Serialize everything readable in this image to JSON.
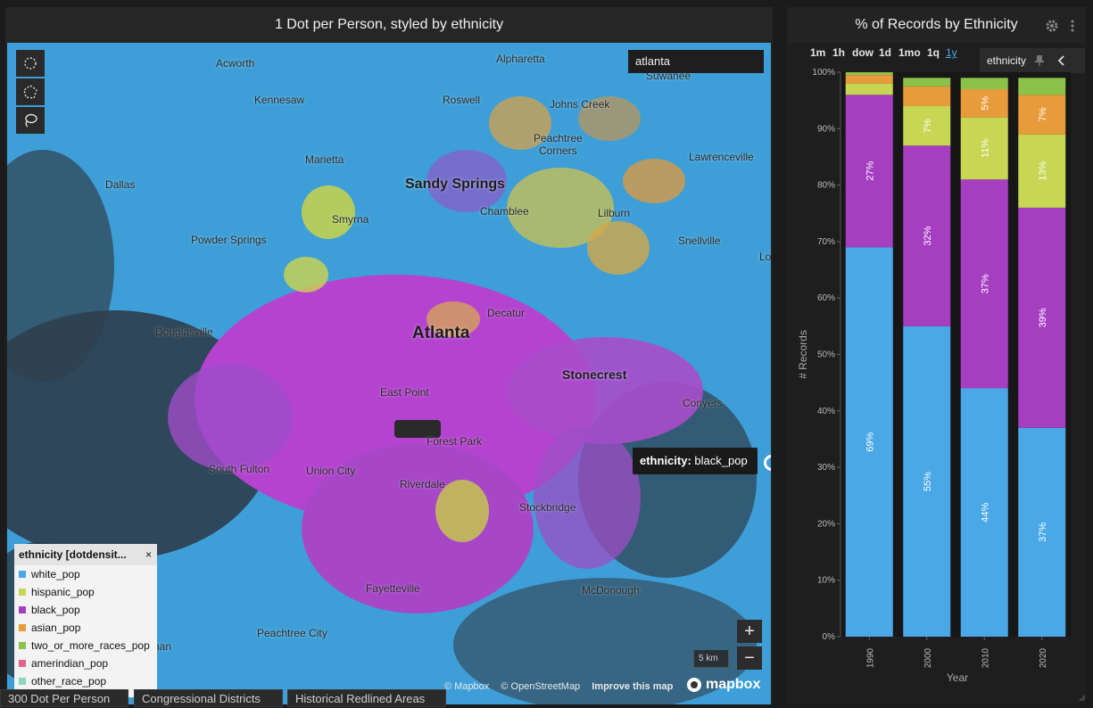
{
  "map_panel": {
    "title": "1 Dot per Person, styled by ethnicity",
    "search_value": "atlanta",
    "tooltip": {
      "key": "ethnicity:",
      "value": "black_pop"
    },
    "legend": {
      "title": "ethnicity [dotdensit...",
      "close": "×",
      "items": [
        {
          "label": "white_pop",
          "color": "#4aa8e6"
        },
        {
          "label": "hispanic_pop",
          "color": "#c7d653"
        },
        {
          "label": "black_pop",
          "color": "#a63ec2"
        },
        {
          "label": "asian_pop",
          "color": "#e89b3a"
        },
        {
          "label": "two_or_more_races_pop",
          "color": "#8cc24a"
        },
        {
          "label": "amerindian_pop",
          "color": "#e1648c"
        },
        {
          "label": "other_race_pop",
          "color": "#8ad6c0"
        }
      ]
    },
    "cities": {
      "acworth": "Acworth",
      "alpharetta": "Alpharetta",
      "suwanee": "Suwanee",
      "kennesaw": "Kennesaw",
      "roswell": "Roswell",
      "johns_creek": "Johns Creek",
      "peachtree_corners": "Peachtree\nCorners",
      "marietta": "Marietta",
      "lawrenceville": "Lawrenceville",
      "dallas": "Dallas",
      "sandy_springs": "Sandy Springs",
      "smyrna": "Smyrna",
      "chamblee": "Chamblee",
      "lilburn": "Lilburn",
      "powder_springs": "Powder Springs",
      "snellville": "Snellville",
      "lo": "Lo",
      "decatur": "Decatur",
      "douglasville": "Douglasville",
      "atlanta": "Atlanta",
      "stonecrest": "Stonecrest",
      "east_point": "East Point",
      "conyers": "Conyers",
      "forest_park": "Forest Park",
      "south_fulton": "South Fulton",
      "union_city": "Union City",
      "riverdale": "Riverdale",
      "stockbridge": "Stockbridge",
      "fayetteville": "Fayetteville",
      "mcdonough": "McDonough",
      "peachtree_city": "Peachtree City",
      "nan": "nan"
    },
    "scale_label": "5 km",
    "zoom_in": "+",
    "zoom_out": "−",
    "attribution": [
      "© Mapbox",
      "© OpenStreetMap",
      "Improve this map"
    ],
    "mapbox_logo": "mapbox"
  },
  "bottom_tabs": [
    "300 Dot Per Person",
    "Congressional Districts",
    "Historical Redlined Areas"
  ],
  "chart_panel": {
    "title": "% of Records by Ethnicity",
    "time_buttons": [
      "1m",
      "1h",
      "dow",
      "1d",
      "1mo",
      "1q",
      "1y"
    ],
    "active_time_button": "1y",
    "ethnicity_pill": "ethnicity"
  },
  "chart_data": {
    "type": "bar",
    "stacked": true,
    "categories": [
      "1990",
      "2000",
      "2010",
      "2020"
    ],
    "xlabel": "Year",
    "ylabel": "# Records",
    "ylim": [
      0,
      100
    ],
    "yticks": [
      "0%",
      "10%",
      "20%",
      "30%",
      "40%",
      "50%",
      "60%",
      "70%",
      "80%",
      "90%",
      "100%"
    ],
    "series": [
      {
        "name": "white_pop",
        "color": "#4aa8e6",
        "values": [
          69,
          55,
          44,
          37
        ],
        "labels": [
          "69%",
          "55%",
          "44%",
          "37%"
        ]
      },
      {
        "name": "black_pop",
        "color": "#a63ec2",
        "values": [
          27,
          32,
          37,
          39
        ],
        "labels": [
          "27%",
          "32%",
          "37%",
          "39%"
        ]
      },
      {
        "name": "hispanic_pop",
        "color": "#c7d653",
        "values": [
          2,
          7,
          11,
          13
        ],
        "labels": [
          "",
          "7%",
          "11%",
          "13%"
        ]
      },
      {
        "name": "asian_pop",
        "color": "#e89b3a",
        "values": [
          1.5,
          3.5,
          5,
          7
        ],
        "labels": [
          "",
          "",
          "5%",
          "7%"
        ]
      },
      {
        "name": "two_or_more_races_pop",
        "color": "#8cc24a",
        "values": [
          0.5,
          1.5,
          2,
          3
        ],
        "labels": [
          "",
          "",
          "",
          ""
        ]
      }
    ]
  }
}
